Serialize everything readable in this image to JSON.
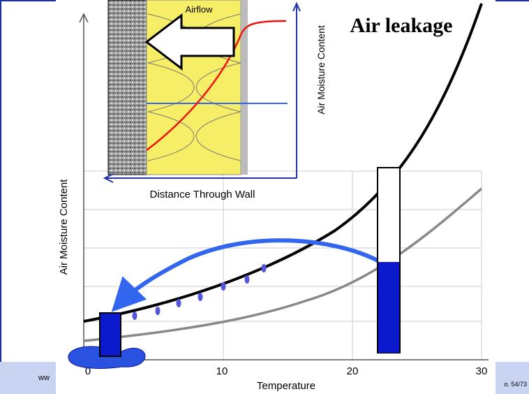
{
  "title": "Air leakage",
  "inset": {
    "label_airflow": "Airflow",
    "y_axis_label": "Air Moisture Content",
    "x_axis_label": "Distance Through Wall"
  },
  "main": {
    "y_axis_label": "Air Moisture Content",
    "x_axis_label": "Temperature",
    "x_tick_labels": [
      "0",
      "10",
      "20",
      "30"
    ]
  },
  "footer": {
    "left": "ww",
    "right": "o. 54/73"
  }
}
